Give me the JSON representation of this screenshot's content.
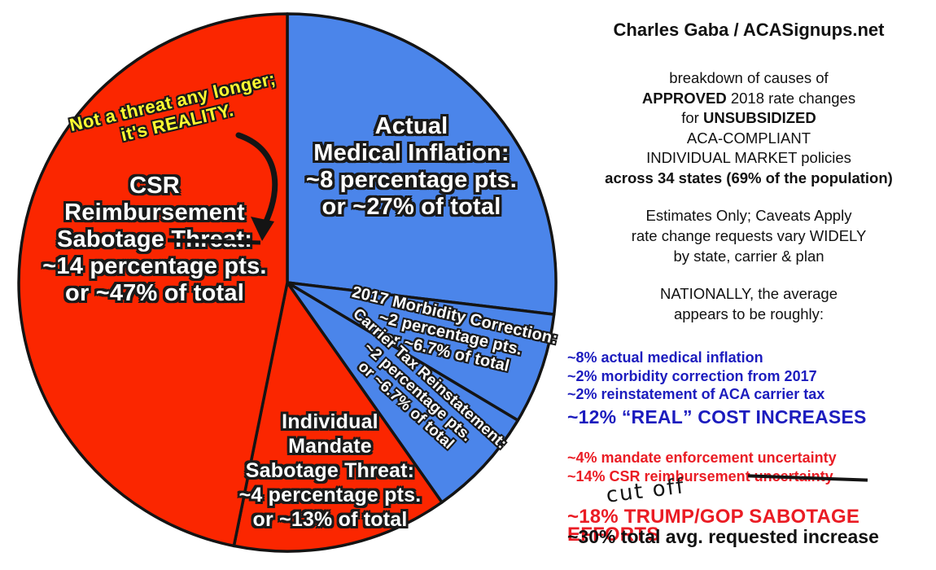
{
  "chart_data": {
    "type": "pie",
    "title": "breakdown of causes of APPROVED 2018 rate changes",
    "units": "percentage points of average approved 2018 rate increase",
    "start": "12 o'clock, clockwise",
    "legend_position": "labels on slices",
    "categories": [
      "Actual Medical Inflation",
      "2017 Morbidity Correction",
      "Carrier Tax Reinstatement",
      "Individual Mandate Sabotage Threat",
      "CSR Reimbursement Sabotage Threat"
    ],
    "values_percentage_points": [
      8,
      2,
      2,
      4,
      14
    ],
    "values_share_of_total_pct": [
      27,
      6.7,
      6.7,
      13,
      47
    ],
    "colors": {
      "real_cost_blue": "#4b85ea",
      "sabotage_red": "#fb2600",
      "outline": "#141414"
    },
    "slices": [
      {
        "name": "actual-medical-inflation",
        "share_pct": 27,
        "color": "#4b85ea",
        "label": {
          "l1": "Actual",
          "l2": "Medical Inflation:",
          "l3": "~8 percentage pts.",
          "l4": "or ~27% of total"
        }
      },
      {
        "name": "2017-morbidity-correction",
        "share_pct": 6.7,
        "color": "#4b85ea",
        "label": {
          "l1": "2017 Morbidity Correction:",
          "l2": "~2 percentage pts.",
          "l3": "or ~6.7% of total"
        }
      },
      {
        "name": "carrier-tax-reinstatement",
        "share_pct": 6.7,
        "color": "#4b85ea",
        "label": {
          "l1": "Carrier Tax Reinstatement:",
          "l2": "~2 percentage pts.",
          "l3": "or ~6.7% of total"
        }
      },
      {
        "name": "individual-mandate-sabotage-threat",
        "share_pct": 13,
        "color": "#fb2600",
        "label": {
          "l1": "Individual",
          "l2": "Mandate",
          "l3": "Sabotage Threat:",
          "l4": "~4 percentage pts.",
          "l5": "or ~13% of total"
        }
      },
      {
        "name": "csr-reimbursement-sabotage-threat",
        "share_pct": 47,
        "color": "#fb2600",
        "label": {
          "l1": "CSR",
          "l2": "Reimbursement",
          "l3a": "Sabotage",
          "l3b_struck": "Threat:",
          "l4": "~14 percentage pts.",
          "l5": "or ~47% of total"
        }
      }
    ],
    "annotation": {
      "l1": "Not a threat any longer;",
      "l2": "it's REALITY.",
      "color": "#ffff31"
    }
  },
  "right_panel": {
    "title": "Charles Gaba / ACASignups.net",
    "intro": {
      "line1": "breakdown of causes of",
      "line2_bold": "APPROVED",
      "line2_rest": " 2018 rate changes",
      "line3_pre": "for ",
      "line3_bold": "UNSUBSIDIZED",
      "line4": "ACA-COMPLIANT",
      "line5": "INDIVIDUAL MARKET policies",
      "line6": "across 34 states (69% of the population)"
    },
    "caveats": {
      "line1": "Estimates Only; Caveats Apply",
      "line2": "rate change requests vary WIDELY",
      "line3": "by state, carrier & plan"
    },
    "nationally": {
      "line1": "NATIONALLY, the average",
      "line2": "appears to be roughly:"
    },
    "real_costs": {
      "color": "#1c1cbe",
      "items": [
        "~8% actual medical inflation",
        "~2% morbidity correction from 2017",
        "~2% reinstatement of ACA carrier tax"
      ],
      "total": "~12% “REAL” COST INCREASES"
    },
    "sabotage": {
      "color": "#ea1c24",
      "item1": "~4% mandate enforcement uncertainty",
      "item2_pre": "~14% CSR reimbursement",
      "item2_struck": "uncertainty",
      "item2_note": "cut off",
      "total": "~18% TRUMP/GOP SABOTAGE EFFORTS"
    },
    "grand_total": "~30% total avg. requested increase"
  }
}
